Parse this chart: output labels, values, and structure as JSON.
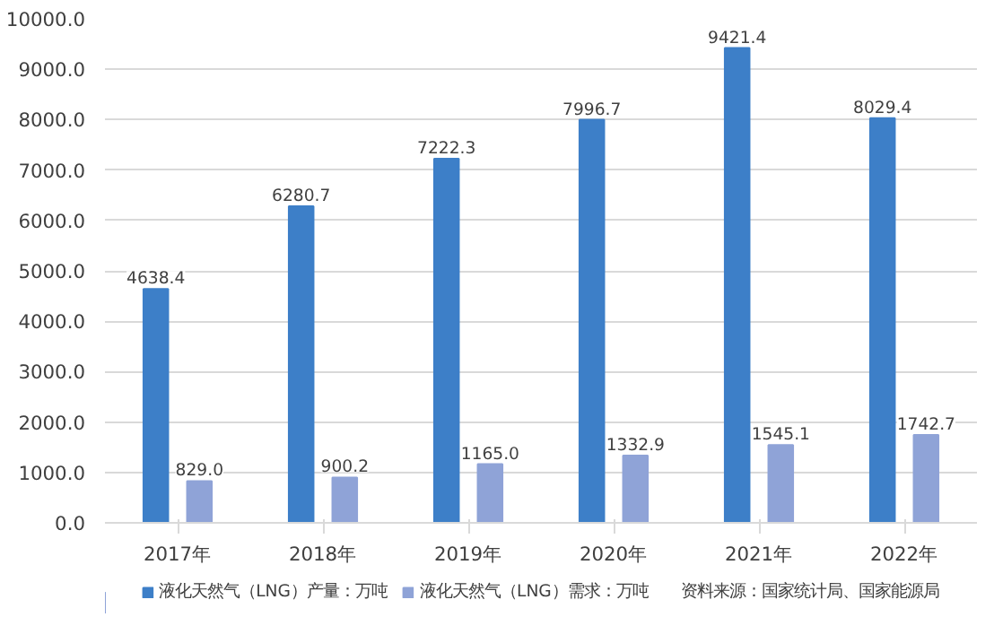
{
  "chart_data": {
    "type": "bar",
    "categories": [
      "2017年",
      "2018年",
      "2019年",
      "2020年",
      "2021年",
      "2022年"
    ],
    "series": [
      {
        "name": "液化天然气（LNG）产量：万吨",
        "color": "#3d7fc8",
        "values": [
          4638.4,
          6280.7,
          7222.3,
          7996.7,
          9421.4,
          8029.4
        ],
        "value_labels": [
          "4638.4",
          "6280.7",
          "7222.3",
          "7996.7",
          "9421.4",
          "8029.4"
        ]
      },
      {
        "name": "液化天然气（LNG）需求：万吨",
        "color": "#8fa3d7",
        "values": [
          829.0,
          900.2,
          1165.0,
          1332.9,
          1545.1,
          1742.7
        ],
        "value_labels": [
          "829.0",
          "900.2",
          "1165.0",
          "1332.9",
          "1545.1",
          "1742.7"
        ]
      }
    ],
    "ylim": [
      0,
      10000
    ],
    "yticks": [
      {
        "value": 0,
        "label": "0.0"
      },
      {
        "value": 1000,
        "label": "1000.0"
      },
      {
        "value": 2000,
        "label": "2000.0"
      },
      {
        "value": 3000,
        "label": "3000.0"
      },
      {
        "value": 4000,
        "label": "4000.0"
      },
      {
        "value": 5000,
        "label": "5000.0"
      },
      {
        "value": 6000,
        "label": "6000.0"
      },
      {
        "value": 7000,
        "label": "7000.0"
      },
      {
        "value": 8000,
        "label": "8000.0"
      },
      {
        "value": 9000,
        "label": "9000.0"
      },
      {
        "value": 10000,
        "label": "10000.0"
      }
    ],
    "grid": "y",
    "legend": "bottom",
    "annotations": [
      "资料来源：国家统计局、国家能源局"
    ]
  }
}
